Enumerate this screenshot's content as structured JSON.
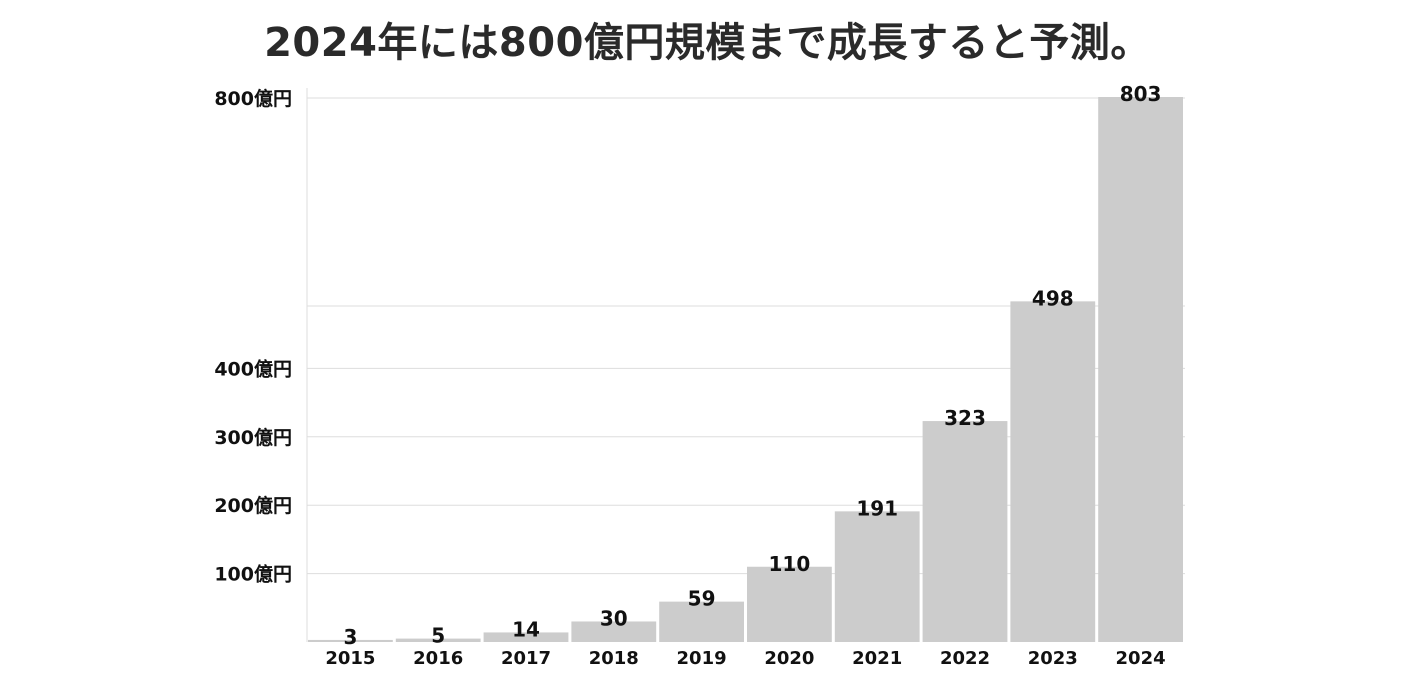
{
  "chart_data": {
    "type": "bar",
    "title": "2024年には800億円規模まで成長すると予測。",
    "categories": [
      "2015",
      "2016",
      "2017",
      "2018",
      "2019",
      "2020",
      "2021",
      "2022",
      "2023",
      "2024"
    ],
    "values": [
      3,
      5,
      14,
      30,
      59,
      110,
      191,
      323,
      498,
      803
    ],
    "data_labels": [
      "3",
      "5",
      "14",
      "30",
      "59",
      "110",
      "191",
      "323",
      "498",
      "803"
    ],
    "y_ticks": [
      {
        "value": 100,
        "label": "100億円"
      },
      {
        "value": 200,
        "label": "200億円"
      },
      {
        "value": 300,
        "label": "300億円"
      },
      {
        "value": 400,
        "label": "400億円"
      },
      {
        "value": 800,
        "label": "800億円"
      }
    ],
    "ylim": [
      0,
      800
    ],
    "axis_break": true,
    "grid": true,
    "bar_color": "#cccccc",
    "grid_color": "#dddddd"
  }
}
